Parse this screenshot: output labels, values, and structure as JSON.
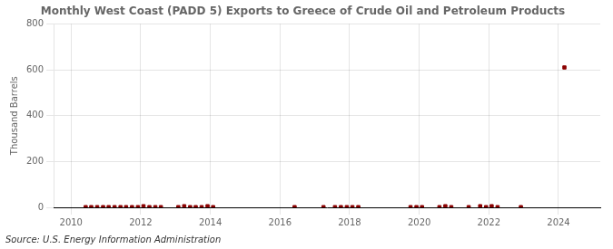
{
  "chart_data": {
    "type": "scatter",
    "title": "Monthly West Coast (PADD 5) Exports to Greece of Crude Oil and Petroleum Products",
    "ylabel": "Thousand Barrels",
    "annotation": "Source: U.S. Energy Information Administration",
    "color": "#8b0000",
    "marker": "square",
    "grid": true,
    "xlim": [
      2009.5,
      2025.2
    ],
    "xticks": [
      2010,
      2012,
      2014,
      2016,
      2018,
      2020,
      2022,
      2024
    ],
    "ylim": [
      0,
      800
    ],
    "yticks": [
      0,
      200,
      400,
      600,
      800
    ],
    "x": [
      2010.42,
      2010.58,
      2010.75,
      2010.92,
      2011.08,
      2011.25,
      2011.42,
      2011.58,
      2011.75,
      2011.92,
      2012.08,
      2012.25,
      2012.42,
      2012.58,
      2013.08,
      2013.25,
      2013.42,
      2013.58,
      2013.75,
      2013.92,
      2014.08,
      2016.42,
      2017.25,
      2017.58,
      2017.75,
      2017.92,
      2018.08,
      2018.25,
      2019.75,
      2019.92,
      2020.08,
      2020.58,
      2020.75,
      2020.92,
      2021.42,
      2021.75,
      2021.92,
      2022.08,
      2022.25,
      2022.92,
      2024.17
    ],
    "values": [
      1,
      1,
      1,
      1,
      1,
      1,
      1,
      1,
      1,
      1,
      5,
      1,
      1,
      1,
      1,
      5,
      1,
      1,
      1,
      5,
      1,
      1,
      1,
      1,
      1,
      1,
      1,
      1,
      1,
      1,
      1,
      1,
      5,
      1,
      1,
      5,
      1,
      5,
      1,
      1,
      610
    ]
  }
}
